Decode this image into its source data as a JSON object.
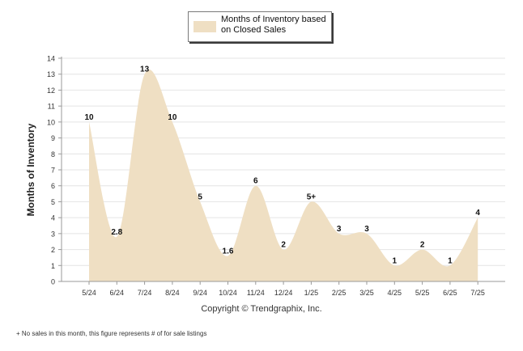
{
  "chart_data": {
    "type": "area",
    "ylabel": "Months of Inventory",
    "xlabel": "",
    "ylim": [
      0,
      14
    ],
    "yticks": [
      0,
      1,
      2,
      3,
      4,
      5,
      6,
      7,
      8,
      9,
      10,
      11,
      12,
      13,
      14
    ],
    "grid": true,
    "legend_position": "top-center",
    "categories": [
      "5/24",
      "6/24",
      "7/24",
      "8/24",
      "9/24",
      "10/24",
      "11/24",
      "12/24",
      "1/25",
      "2/25",
      "3/25",
      "4/25",
      "5/25",
      "6/25",
      "7/25"
    ],
    "series": [
      {
        "name": "Months of Inventory based on Closed Sales",
        "values": [
          10,
          2.8,
          13,
          10,
          5,
          1.6,
          6,
          2,
          5,
          3,
          3,
          1,
          2,
          1,
          4
        ],
        "labels": [
          "10",
          "2.8",
          "13",
          "10",
          "5",
          "1.6",
          "6",
          "2",
          "5+",
          "3",
          "3",
          "1",
          "2",
          "1",
          "4"
        ]
      }
    ]
  },
  "legend": {
    "label": "Months of Inventory based\non Closed Sales"
  },
  "copyright": "Copyright © Trendgraphix, Inc.",
  "footnote": "+ No sales in this month, this figure represents # of for sale listings",
  "colors": {
    "area_fill": "#efdfc3",
    "grid": "#e4e4e4",
    "axis": "#9a9a9a",
    "text": "#111111"
  }
}
